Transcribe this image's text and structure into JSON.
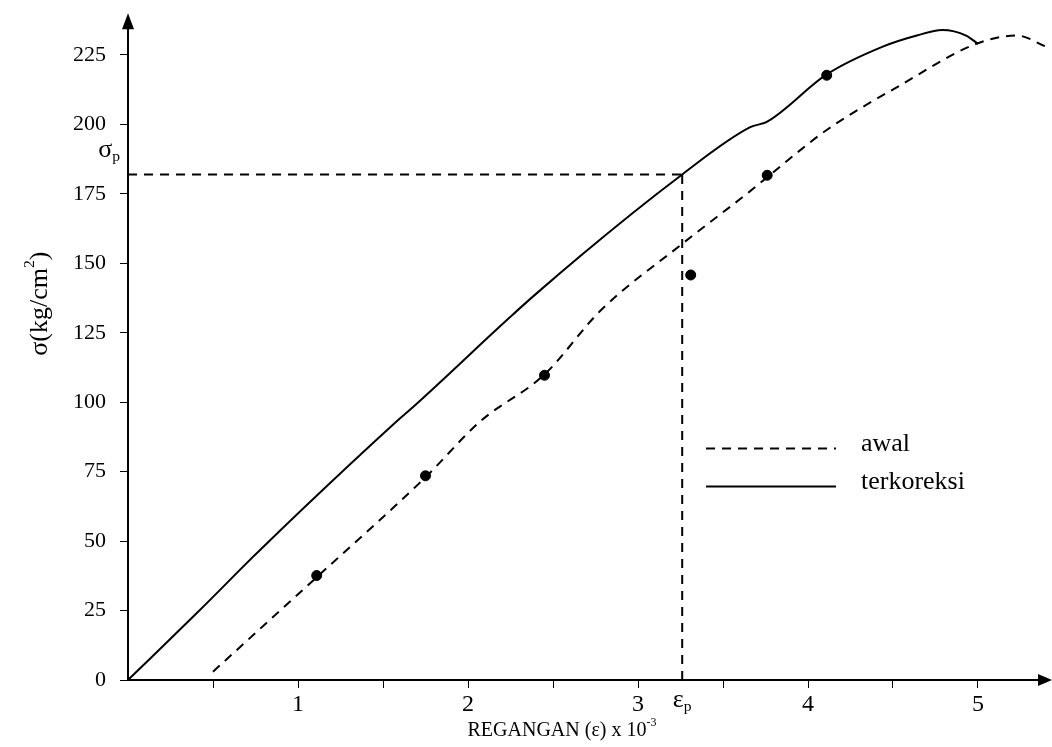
{
  "chart_data": {
    "type": "line",
    "xlabel": "REGANGAN (ε) x 10$^{-3}$",
    "ylabel": "σ(kg/cm$^{2}$)",
    "xlim": [
      0,
      5.4
    ],
    "ylim": [
      0,
      235
    ],
    "xticks": [
      {
        "value": 0.5,
        "label": null
      },
      1,
      {
        "value": 1.5,
        "label": null
      },
      2,
      {
        "value": 2.5,
        "label": null
      },
      3,
      {
        "value": 3.5,
        "label": null
      },
      4,
      {
        "value": 4.5,
        "label": null
      },
      5
    ],
    "yticks": [
      0,
      25,
      50,
      75,
      100,
      125,
      150,
      175,
      200,
      225
    ],
    "grid": false,
    "legend": "right",
    "marker": "none",
    "series": [
      {
        "name": "awal",
        "line_style": "dashed",
        "color": "#000000",
        "x": [
          0.5,
          1.11,
          1.75,
          2.07,
          2.45,
          2.78,
          3.26,
          3.66,
          3.76,
          4.11,
          4.54,
          4.99,
          5.23,
          5.4
        ],
        "values": [
          3,
          37,
          73,
          93,
          110,
          133,
          157,
          176,
          181,
          198,
          214,
          229,
          232,
          228
        ]
      },
      {
        "name": "terkoreksi",
        "line_style": "solid",
        "color": "#000000",
        "x": [
          0,
          0.42,
          0.78,
          1.56,
          1.69,
          2.4,
          3.26,
          3.66,
          3.76,
          4.11,
          4.44,
          4.64,
          4.79,
          4.93,
          5.0
        ],
        "values": [
          0,
          25,
          47,
          92,
          99,
          139,
          182,
          199,
          201,
          218,
          228,
          232,
          234,
          232,
          229
        ]
      },
      {
        "type": "scatter",
        "marker": "circle",
        "color": "#000000",
        "x": [
          1.11,
          1.75,
          2.45,
          3.31,
          3.76,
          4.11
        ],
        "values": [
          37.6,
          73.5,
          109.7,
          145.8,
          181.7,
          217.7
        ]
      }
    ],
    "ref_lines": [
      {
        "axis": "y",
        "value": 182,
        "label": "σ$_{p}$",
        "line_style": "dashed",
        "color": "#000000"
      },
      {
        "axis": "x",
        "value": 3.26,
        "label": "ε$_{p}$",
        "line_style": "dashed",
        "color": "#000000"
      }
    ]
  }
}
